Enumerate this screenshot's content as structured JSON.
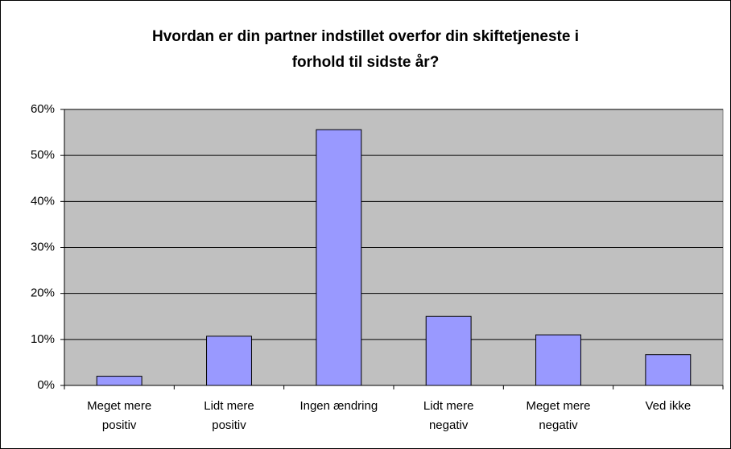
{
  "chart_data": {
    "type": "bar",
    "title": [
      "Hvordan er din partner indstillet overfor din skiftetjeneste i",
      "forhold til sidste år?"
    ],
    "categories": [
      [
        "Meget mere",
        "positiv"
      ],
      [
        "Lidt mere",
        "positiv"
      ],
      [
        "Ingen ændring"
      ],
      [
        "Lidt mere",
        "negativ"
      ],
      [
        "Meget mere",
        "negativ"
      ],
      [
        "Ved ikke"
      ]
    ],
    "values": [
      2,
      10.7,
      55.6,
      15,
      11,
      6.7
    ],
    "color": "#9999ff",
    "ylim": [
      0,
      60
    ],
    "yticks": [
      {
        "value": 0,
        "label": "0%"
      },
      {
        "value": 10,
        "label": "10%"
      },
      {
        "value": 20,
        "label": "20%"
      },
      {
        "value": 30,
        "label": "30%"
      },
      {
        "value": 40,
        "label": "40%"
      },
      {
        "value": 50,
        "label": "50%"
      },
      {
        "value": 60,
        "label": "60%"
      }
    ],
    "grid": true
  }
}
